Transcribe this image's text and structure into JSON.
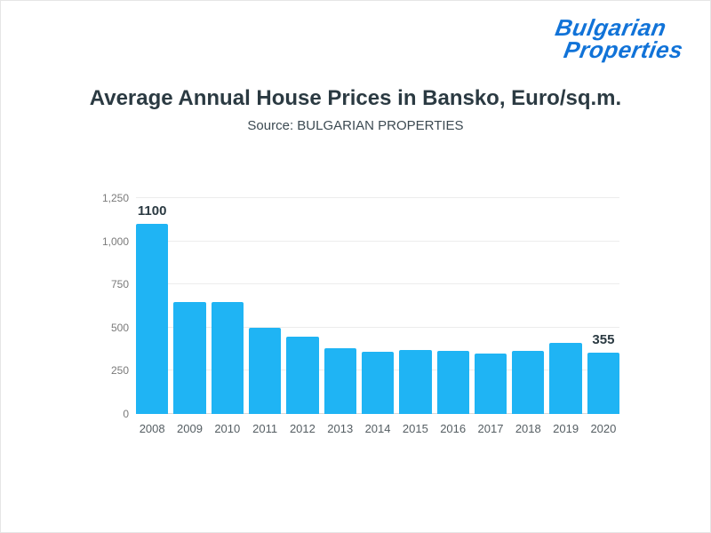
{
  "logo": {
    "line1": "Bulgarian",
    "line2": "Properties",
    "color": "#1173d8"
  },
  "header": {
    "title": "Average Annual House Prices in Bansko, Euro/sq.m.",
    "subtitle": "Source: BULGARIAN PROPERTIES"
  },
  "chart_data": {
    "type": "bar",
    "title": "Average Annual House Prices in Bansko, Euro/sq.m.",
    "subtitle": "Source: BULGARIAN PROPERTIES",
    "xlabel": "",
    "ylabel": "",
    "categories": [
      "2008",
      "2009",
      "2010",
      "2011",
      "2012",
      "2013",
      "2014",
      "2015",
      "2016",
      "2017",
      "2018",
      "2019",
      "2020"
    ],
    "values": [
      1100,
      650,
      650,
      500,
      450,
      380,
      360,
      370,
      365,
      350,
      365,
      410,
      355
    ],
    "bar_labels": [
      "1100",
      "",
      "",
      "",
      "",
      "",
      "",
      "",
      "",
      "",
      "",
      "",
      "355"
    ],
    "bar_color": "#1fb4f4",
    "ylim": [
      0,
      1250
    ],
    "ytick_values": [
      0,
      250,
      500,
      750,
      1000,
      1250
    ],
    "ytick_labels": [
      "0",
      "250",
      "500",
      "750",
      "1,000",
      "1,250"
    ],
    "grid": true,
    "legend": "none"
  }
}
